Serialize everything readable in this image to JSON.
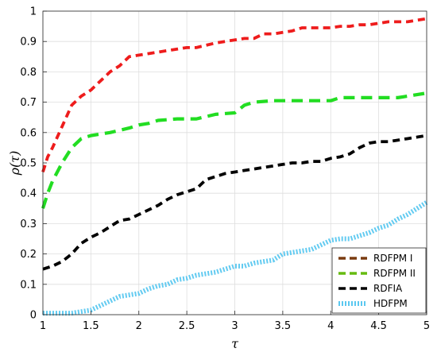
{
  "chart_data": {
    "type": "line",
    "title": "",
    "xlabel": "τ",
    "ylabel": "ρ(τ)",
    "xlim": [
      1,
      5
    ],
    "ylim": [
      0,
      1
    ],
    "xticks": [
      1,
      1.5,
      2,
      2.5,
      3,
      3.5,
      4,
      4.5,
      5
    ],
    "xtick_labels": [
      "1",
      "1.5",
      "2",
      "2.5",
      "3",
      "3.5",
      "4",
      "4.5",
      "5"
    ],
    "yticks": [
      0,
      0.1,
      0.2,
      0.3,
      0.4,
      0.5,
      0.6,
      0.7,
      0.8,
      0.9,
      1
    ],
    "ytick_labels": [
      "0",
      "0.1",
      "0.2",
      "0.3",
      "0.4",
      "0.5",
      "0.6",
      "0.7",
      "0.8",
      "0.9",
      "1"
    ],
    "grid": true,
    "legend_position": "bottom-right",
    "series": [
      {
        "name": "RDFPM I",
        "color": "#ee1c1c",
        "legend_color": "#7a3b10",
        "dash": "dashed",
        "x": [
          1,
          1.05,
          1.1,
          1.2,
          1.3,
          1.4,
          1.5,
          1.6,
          1.7,
          1.8,
          1.9,
          2.0,
          2.1,
          2.2,
          2.3,
          2.4,
          2.5,
          2.6,
          2.8,
          3.0,
          3.1,
          3.2,
          3.3,
          3.4,
          3.5,
          3.6,
          3.7,
          3.8,
          3.9,
          4.0,
          4.1,
          4.2,
          4.3,
          4.4,
          4.5,
          4.6,
          4.7,
          4.8,
          4.9,
          5.0
        ],
        "values": [
          0.47,
          0.52,
          0.55,
          0.62,
          0.69,
          0.72,
          0.74,
          0.77,
          0.8,
          0.82,
          0.85,
          0.855,
          0.86,
          0.865,
          0.87,
          0.875,
          0.88,
          0.88,
          0.895,
          0.905,
          0.91,
          0.91,
          0.925,
          0.925,
          0.93,
          0.935,
          0.945,
          0.945,
          0.945,
          0.945,
          0.95,
          0.95,
          0.955,
          0.955,
          0.96,
          0.965,
          0.965,
          0.965,
          0.97,
          0.975
        ]
      },
      {
        "name": "RDFPM II",
        "color": "#22dd22",
        "legend_color": "#66bb11",
        "dash": "dashed",
        "x": [
          1,
          1.05,
          1.1,
          1.2,
          1.3,
          1.4,
          1.5,
          1.7,
          1.9,
          2.0,
          2.1,
          2.2,
          2.4,
          2.6,
          2.8,
          3.0,
          3.1,
          3.2,
          3.4,
          3.6,
          3.8,
          4.0,
          4.1,
          4.3,
          4.5,
          4.7,
          4.8,
          4.9,
          5.0
        ],
        "values": [
          0.35,
          0.4,
          0.44,
          0.5,
          0.55,
          0.58,
          0.59,
          0.6,
          0.615,
          0.625,
          0.63,
          0.64,
          0.645,
          0.645,
          0.66,
          0.665,
          0.69,
          0.7,
          0.705,
          0.705,
          0.705,
          0.705,
          0.715,
          0.715,
          0.715,
          0.715,
          0.72,
          0.725,
          0.73
        ]
      },
      {
        "name": "RDFIA",
        "color": "#000000",
        "legend_color": "#000000",
        "dash": "dashed",
        "x": [
          1,
          1.1,
          1.2,
          1.3,
          1.4,
          1.5,
          1.6,
          1.7,
          1.8,
          1.9,
          2.0,
          2.1,
          2.2,
          2.3,
          2.4,
          2.5,
          2.6,
          2.7,
          2.8,
          2.9,
          3.0,
          3.1,
          3.2,
          3.3,
          3.4,
          3.5,
          3.6,
          3.7,
          3.8,
          3.9,
          4.0,
          4.1,
          4.2,
          4.3,
          4.4,
          4.5,
          4.6,
          4.7,
          4.8,
          4.9,
          5.0
        ],
        "values": [
          0.15,
          0.16,
          0.175,
          0.2,
          0.235,
          0.255,
          0.27,
          0.29,
          0.31,
          0.315,
          0.33,
          0.345,
          0.36,
          0.38,
          0.395,
          0.405,
          0.415,
          0.445,
          0.455,
          0.465,
          0.47,
          0.475,
          0.48,
          0.485,
          0.49,
          0.495,
          0.5,
          0.5,
          0.505,
          0.505,
          0.515,
          0.52,
          0.53,
          0.55,
          0.565,
          0.57,
          0.57,
          0.575,
          0.58,
          0.585,
          0.59
        ]
      },
      {
        "name": "HDFPM",
        "color": "#5bc8f0",
        "legend_color": "#5bc8f0",
        "dash": "dotted",
        "x": [
          1,
          1.1,
          1.2,
          1.3,
          1.4,
          1.5,
          1.6,
          1.7,
          1.8,
          1.9,
          2.0,
          2.1,
          2.2,
          2.3,
          2.4,
          2.5,
          2.6,
          2.7,
          2.8,
          2.9,
          3.0,
          3.1,
          3.2,
          3.3,
          3.4,
          3.5,
          3.6,
          3.7,
          3.8,
          3.9,
          4.0,
          4.1,
          4.2,
          4.3,
          4.4,
          4.5,
          4.6,
          4.7,
          4.8,
          4.9,
          5.0
        ],
        "values": [
          0.005,
          0.005,
          0.005,
          0.005,
          0.01,
          0.015,
          0.03,
          0.045,
          0.06,
          0.065,
          0.07,
          0.085,
          0.095,
          0.1,
          0.115,
          0.12,
          0.13,
          0.135,
          0.14,
          0.15,
          0.16,
          0.16,
          0.17,
          0.175,
          0.18,
          0.2,
          0.205,
          0.21,
          0.215,
          0.23,
          0.245,
          0.25,
          0.25,
          0.26,
          0.27,
          0.285,
          0.295,
          0.315,
          0.33,
          0.35,
          0.37
        ]
      }
    ]
  }
}
